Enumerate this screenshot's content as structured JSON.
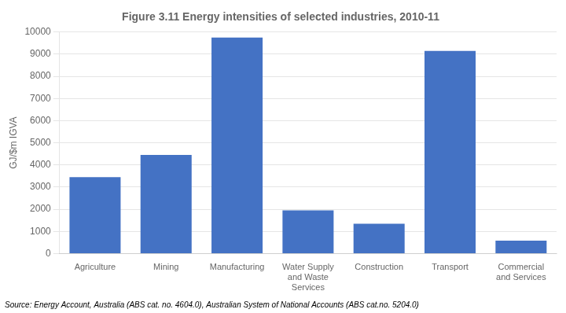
{
  "chart_data": {
    "type": "bar",
    "title": "Figure 3.11 Energy intensities of selected industries, 2010-11",
    "ylabel": "GJ/$m IGVA",
    "source": "Source: Energy Account, Australia (ABS cat. no. 4604.0), Australian System of National Accounts (ABS cat.no. 5204.0)",
    "categories": [
      "Agriculture",
      "Mining",
      "Manufacturing",
      "Water Supply\nand Waste\nServices",
      "Construction",
      "Transport",
      "Commercial\nand Services"
    ],
    "values": [
      3450,
      4450,
      9750,
      1950,
      1350,
      9150,
      580
    ],
    "color": "#4472c4",
    "ylim": [
      0,
      10000
    ],
    "yticks": [
      0,
      1000,
      2000,
      3000,
      4000,
      5000,
      6000,
      7000,
      8000,
      9000,
      10000
    ],
    "grid": true
  }
}
